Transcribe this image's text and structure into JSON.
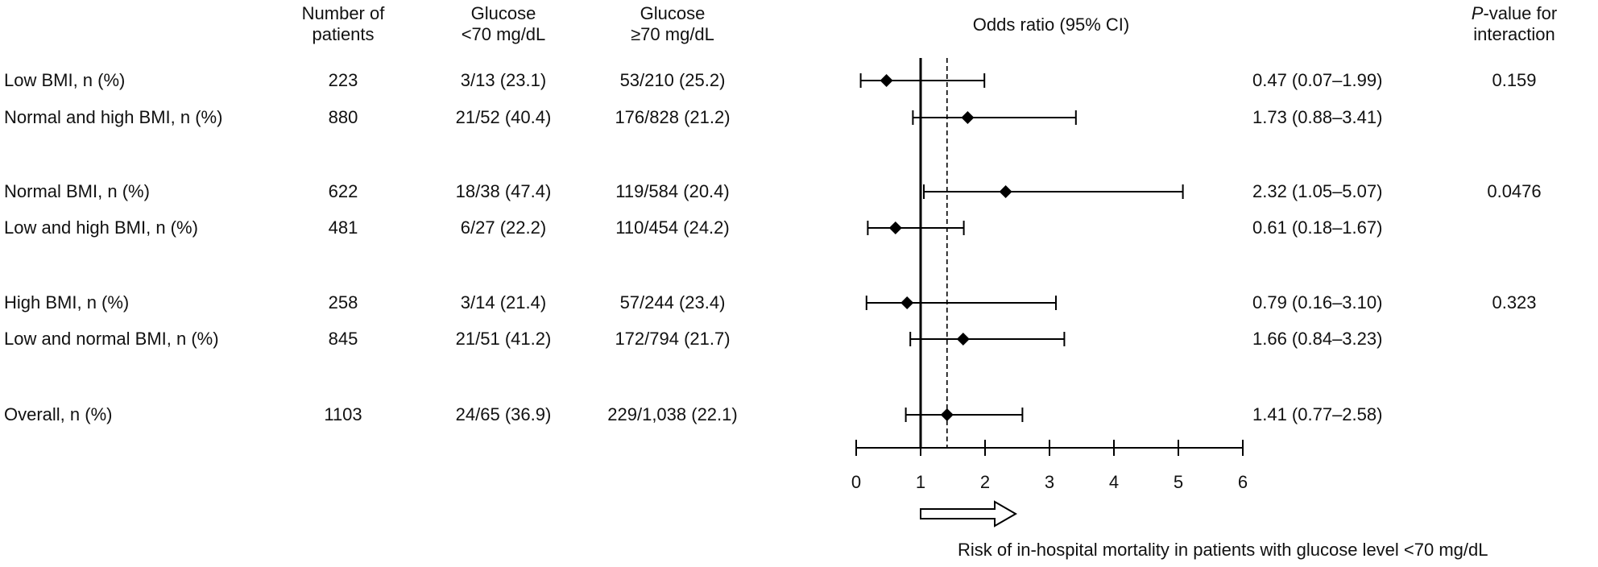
{
  "headers": {
    "patients_line1": "Number of",
    "patients_line2": "patients",
    "glucose_low_line1": "Glucose",
    "glucose_low_line2": "<70 mg/dL",
    "glucose_high_line1": "Glucose",
    "glucose_high_line2": "≥70 mg/dL",
    "odds_ratio": "Odds ratio (95% CI)",
    "pvalue_italic": "P",
    "pvalue_rest": "-value for",
    "pvalue_line2": "interaction"
  },
  "rows": [
    {
      "label": "Low BMI, n (%)",
      "patients": "223",
      "low": "3/13 (23.1)",
      "high": "53/210 (25.2)",
      "or_text": "0.47 (0.07–1.99)",
      "p": "0.159"
    },
    {
      "label": "Normal and high BMI, n (%)",
      "patients": "880",
      "low": "21/52 (40.4)",
      "high": "176/828 (21.2)",
      "or_text": "1.73 (0.88–3.41)",
      "p": ""
    },
    {
      "label": "Normal BMI, n (%)",
      "patients": "622",
      "low": "18/38 (47.4)",
      "high": "119/584 (20.4)",
      "or_text": "2.32 (1.05–5.07)",
      "p": "0.0476"
    },
    {
      "label": "Low and high BMI, n (%)",
      "patients": "481",
      "low": "6/27 (22.2)",
      "high": "110/454 (24.2)",
      "or_text": "0.61 (0.18–1.67)",
      "p": ""
    },
    {
      "label": "High BMI, n (%)",
      "patients": "258",
      "low": "3/14 (21.4)",
      "high": "57/244 (23.4)",
      "or_text": "0.79 (0.16–3.10)",
      "p": "0.323"
    },
    {
      "label": "Low and normal BMI, n (%)",
      "patients": "845",
      "low": "21/51 (41.2)",
      "high": "172/794 (21.7)",
      "or_text": "1.66 (0.84–3.23)",
      "p": ""
    },
    {
      "label": "Overall, n (%)",
      "patients": "1103",
      "low": "24/65 (36.9)",
      "high": "229/1,038 (22.1)",
      "or_text": "1.41 (0.77–2.58)",
      "p": ""
    }
  ],
  "footer": {
    "risk_label": "Risk of in-hospital mortality in patients with glucose level <70 mg/dL"
  },
  "chart_data": {
    "type": "forest",
    "categories": [
      "Low BMI",
      "Normal and high BMI",
      "Normal BMI",
      "Low and high BMI",
      "High BMI",
      "Low and normal BMI",
      "Overall"
    ],
    "or": [
      0.47,
      1.73,
      2.32,
      0.61,
      0.79,
      1.66,
      1.41
    ],
    "ci_low": [
      0.07,
      0.88,
      1.05,
      0.18,
      0.16,
      0.84,
      0.77
    ],
    "ci_high": [
      1.99,
      3.41,
      5.07,
      1.67,
      3.1,
      3.23,
      2.58
    ],
    "xlim": [
      0,
      6
    ],
    "xticks": [
      "0",
      "1",
      "2",
      "3",
      "4",
      "5",
      "6"
    ],
    "reference_line": 1,
    "overall_line": 1.41,
    "grid": false
  }
}
